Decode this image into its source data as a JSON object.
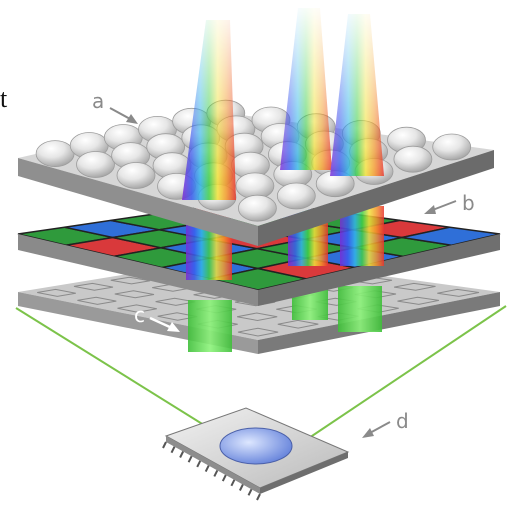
{
  "corner_fragment": "t",
  "labels": {
    "a": "a",
    "b": "b",
    "c": "c",
    "d": "d"
  },
  "colors": {
    "red": "#d9393b",
    "green": "#2f9a3c",
    "blue": "#2f6fd8",
    "light_green": "#6fe35a",
    "plate_top": "#dcdcdc",
    "plate_edge": "#7d7d7d",
    "sensor_plate": "#a9a9a9",
    "label_gray": "#8a8a8a"
  },
  "filter_grid": [
    [
      "green",
      "blue",
      "green",
      "red",
      "green"
    ],
    [
      "red",
      "green",
      "blue",
      "green",
      "blue"
    ],
    [
      "green",
      "blue",
      "red",
      "green",
      "green"
    ],
    [
      "blue",
      "green",
      "green",
      "blue",
      "red"
    ],
    [
      "green",
      "red",
      "blue",
      "green",
      "blue"
    ]
  ]
}
